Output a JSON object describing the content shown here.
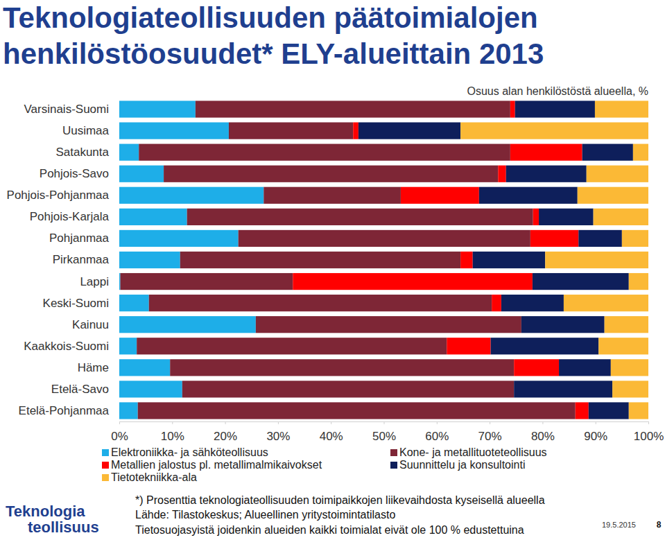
{
  "chart_data": {
    "type": "bar",
    "orientation": "horizontal",
    "stacked": true,
    "title": "Teknologiateollisuuden päätoimialojen henkilöstöosuudet* ELY-alueittain 2013",
    "subtitle": "Osuus alan henkilöstöstä alueella, %",
    "categories": [
      "Varsinais-Suomi",
      "Uusimaa",
      "Satakunta",
      "Pohjois-Savo",
      "Pohjois-Pohjanmaa",
      "Pohjois-Karjala",
      "Pohjanmaa",
      "Pirkanmaa",
      "Lappi",
      "Keski-Suomi",
      "Kainuu",
      "Kaakkois-Suomi",
      "Häme",
      "Etelä-Savo",
      "Etelä-Pohjanmaa"
    ],
    "series": [
      {
        "name": "Elektroniikka- ja sähköteollisuus",
        "color": "#1eaee8",
        "values": [
          14.4,
          20.7,
          3.7,
          8.4,
          27.3,
          12.8,
          22.5,
          11.5,
          0.2,
          5.6,
          25.8,
          3.3,
          9.6,
          11.9,
          3.5
        ]
      },
      {
        "name": "Kone- ja metallituoteteollisuus",
        "color": "#7e2636",
        "values": [
          59.5,
          23.5,
          70.2,
          63.2,
          25.9,
          65.4,
          55.2,
          53.0,
          32.6,
          64.8,
          50.2,
          58.6,
          65.0,
          62.7,
          82.7
        ]
      },
      {
        "name": "Metallien jalostus pl. metallimalmikaivokset",
        "color": "#ff0000",
        "values": [
          0.9,
          1.0,
          13.6,
          1.5,
          14.8,
          1.1,
          9.1,
          2.3,
          45.3,
          1.8,
          0,
          8.3,
          8.5,
          0,
          2.5
        ]
      },
      {
        "name": "Suunnittelu ja konsultointi",
        "color": "#0e1f5b",
        "values": [
          15.1,
          19.3,
          9.6,
          15.2,
          18.6,
          10.3,
          8.2,
          13.7,
          18.2,
          11.8,
          15.7,
          20.4,
          9.8,
          18.6,
          7.6
        ]
      },
      {
        "name": "Tietotekniikka-ala",
        "color": "#fbb936",
        "values": [
          10.1,
          35.5,
          2.9,
          11.7,
          13.4,
          10.4,
          5.0,
          19.5,
          3.7,
          16.0,
          8.3,
          9.4,
          7.1,
          6.8,
          3.7
        ]
      }
    ],
    "xlim": [
      0,
      100
    ],
    "xticks": [
      {
        "value": 0,
        "label": "0%"
      },
      {
        "value": 10,
        "label": "10%"
      },
      {
        "value": 20,
        "label": "20%"
      },
      {
        "value": 30,
        "label": "30%"
      },
      {
        "value": 40,
        "label": "40%"
      },
      {
        "value": 50,
        "label": "50%"
      },
      {
        "value": 60,
        "label": "60%"
      },
      {
        "value": 70,
        "label": "70%"
      },
      {
        "value": 80,
        "label": "80%"
      },
      {
        "value": 90,
        "label": "90%"
      },
      {
        "value": 100,
        "label": "100%"
      }
    ],
    "grid": false,
    "legend": "bottom",
    "annotations": [
      "*) Prosenttia teknologiateollisuuden toimipaikkojen liikevaihdosta kyseisellä alueella",
      "Lähde: Tilastokeskus; Alueellinen yritystoimintatilasto",
      "Tietosuojasyistä joidenkin alueiden kaikki toimialat eivät ole 100 % edustettuina",
      "19.5.2015",
      "8",
      "Teknologia",
      "teollisuus"
    ]
  }
}
